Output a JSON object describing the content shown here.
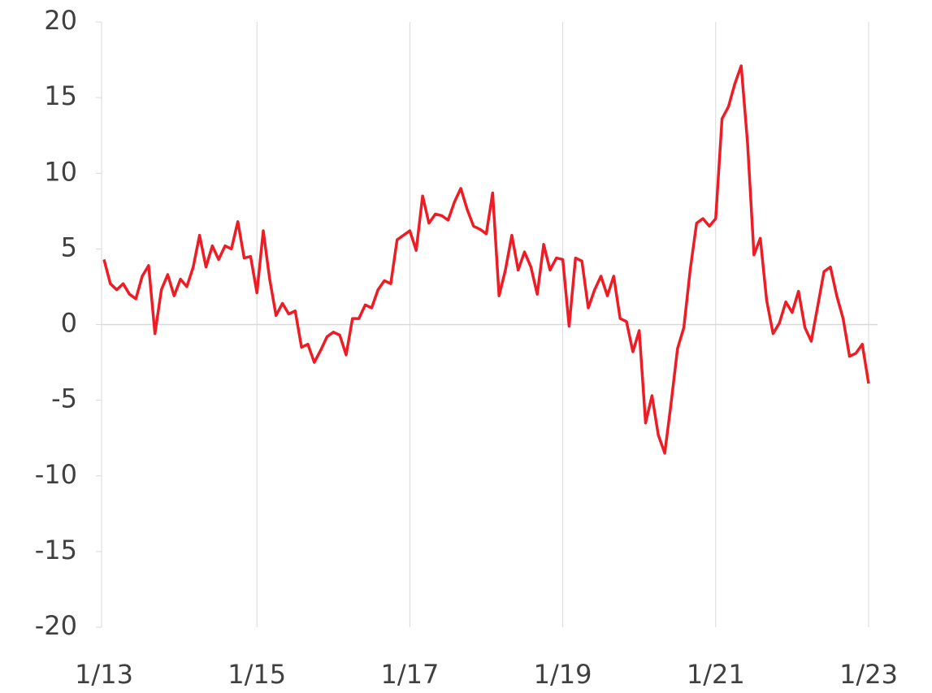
{
  "chart_data": {
    "type": "line",
    "categories": [
      "1/13",
      null,
      null,
      null,
      null,
      null,
      null,
      null,
      null,
      null,
      null,
      null,
      null,
      null,
      null,
      null,
      null,
      null,
      null,
      null,
      null,
      null,
      null,
      null,
      "1/15",
      null,
      null,
      null,
      null,
      null,
      null,
      null,
      null,
      null,
      null,
      null,
      null,
      null,
      null,
      null,
      null,
      null,
      null,
      null,
      null,
      null,
      null,
      null,
      "1/17",
      null,
      null,
      null,
      null,
      null,
      null,
      null,
      null,
      null,
      null,
      null,
      null,
      null,
      null,
      null,
      null,
      null,
      null,
      null,
      null,
      null,
      null,
      null,
      "1/19",
      null,
      null,
      null,
      null,
      null,
      null,
      null,
      null,
      null,
      null,
      null,
      null,
      null,
      null,
      null,
      null,
      null,
      null,
      null,
      null,
      null,
      null,
      null,
      "1/21",
      null,
      null,
      null,
      null,
      null,
      null,
      null,
      null,
      null,
      null,
      null,
      null,
      null,
      null,
      null,
      null,
      null,
      null,
      null,
      null,
      null,
      null,
      null,
      "1/23"
    ],
    "series": [
      {
        "color": "#ee1c25",
        "values": [
          4.3,
          2.7,
          2.3,
          2.7,
          2.0,
          1.7,
          3.2,
          3.9,
          -0.6,
          2.3,
          3.3,
          1.9,
          3.0,
          2.5,
          3.8,
          5.9,
          3.8,
          5.2,
          4.3,
          5.2,
          5.0,
          6.8,
          4.4,
          4.5,
          2.1,
          6.2,
          3.0,
          0.6,
          1.4,
          0.7,
          0.9,
          -1.5,
          -1.3,
          -2.5,
          -1.7,
          -0.8,
          -0.5,
          -0.7,
          -2.0,
          0.4,
          0.4,
          1.3,
          1.1,
          2.3,
          2.9,
          2.7,
          5.6,
          5.9,
          6.2,
          4.9,
          8.5,
          6.7,
          7.3,
          7.2,
          6.9,
          8.1,
          9.0,
          7.6,
          6.5,
          6.3,
          6.0,
          8.7,
          1.9,
          3.6,
          5.9,
          3.6,
          4.8,
          3.8,
          2.0,
          5.3,
          3.6,
          4.4,
          4.3,
          -0.1,
          4.4,
          4.2,
          1.1,
          2.3,
          3.2,
          1.9,
          3.2,
          0.4,
          0.2,
          -1.8,
          -0.4,
          -6.5,
          -4.7,
          -7.3,
          -8.5,
          -5.2,
          -1.6,
          -0.2,
          3.6,
          6.7,
          7.0,
          6.5,
          7.0,
          13.6,
          14.4,
          15.9,
          17.1,
          12.0,
          4.6,
          5.7,
          1.6,
          -0.6,
          0.1,
          1.5,
          0.8,
          2.2,
          -0.2,
          -1.1,
          1.2,
          3.5,
          3.8,
          1.9,
          0.4,
          -2.1,
          -1.9,
          -1.3,
          -3.9
        ]
      }
    ],
    "ylim": [
      -20,
      20
    ],
    "yticks": [
      -20,
      -15,
      -10,
      -5,
      0,
      5,
      10,
      15,
      20
    ],
    "grid": true
  }
}
